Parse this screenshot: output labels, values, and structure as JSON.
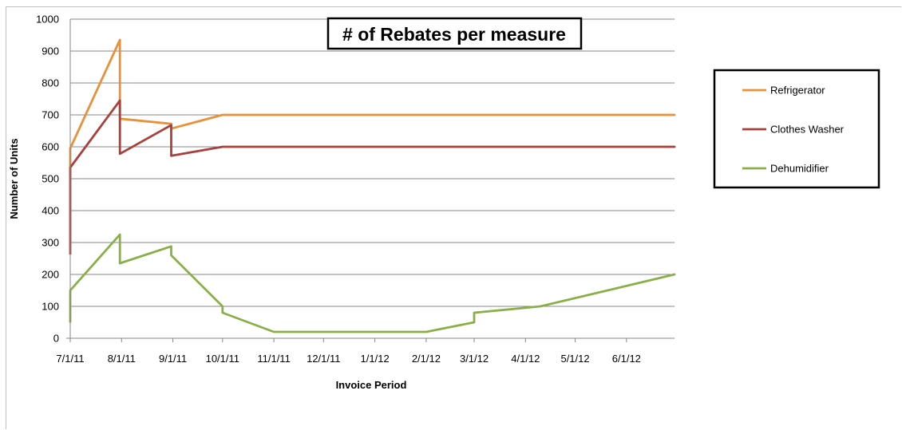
{
  "chart_data": {
    "type": "line",
    "title": "# of Rebates per measure",
    "xlabel": "Invoice Period",
    "ylabel": "Number of Units",
    "ylim": [
      0,
      1000
    ],
    "yticks": [
      0,
      100,
      200,
      300,
      400,
      500,
      600,
      700,
      800,
      900,
      1000
    ],
    "xlim": [
      "2011-07-01",
      "2012-06-30"
    ],
    "xticks": [
      {
        "date": "2011-07-01",
        "label": "7/1/11"
      },
      {
        "date": "2011-08-01",
        "label": "8/1/11"
      },
      {
        "date": "2011-09-01",
        "label": "9/1/11"
      },
      {
        "date": "2011-10-01",
        "label": "10/1/11"
      },
      {
        "date": "2011-11-01",
        "label": "11/1/11"
      },
      {
        "date": "2011-12-01",
        "label": "12/1/11"
      },
      {
        "date": "2012-01-01",
        "label": "1/1/12"
      },
      {
        "date": "2012-02-01",
        "label": "2/1/12"
      },
      {
        "date": "2012-03-01",
        "label": "3/1/12"
      },
      {
        "date": "2012-04-01",
        "label": "4/1/12"
      },
      {
        "date": "2012-05-01",
        "label": "5/1/12"
      },
      {
        "date": "2012-06-01",
        "label": "6/1/12"
      }
    ],
    "grid": "horizontal",
    "legend": "right",
    "series": [
      {
        "name": "Refrigerator",
        "color": "#e8913a",
        "points": [
          [
            "2011-07-01",
            510
          ],
          [
            "2011-07-01",
            595
          ],
          [
            "2011-07-31",
            935
          ],
          [
            "2011-07-31",
            688
          ],
          [
            "2011-08-31",
            672
          ],
          [
            "2011-08-31",
            657
          ],
          [
            "2011-10-01",
            700
          ],
          [
            "2012-06-30",
            700
          ]
        ]
      },
      {
        "name": "Clothes Washer",
        "color": "#a9403b",
        "points": [
          [
            "2011-07-01",
            265
          ],
          [
            "2011-07-01",
            535
          ],
          [
            "2011-07-31",
            745
          ],
          [
            "2011-07-31",
            578
          ],
          [
            "2011-08-31",
            668
          ],
          [
            "2011-08-31",
            572
          ],
          [
            "2011-10-01",
            600
          ],
          [
            "2012-06-30",
            600
          ]
        ]
      },
      {
        "name": "Dehumidifier",
        "color": "#8aaf48",
        "points": [
          [
            "2011-07-01",
            52
          ],
          [
            "2011-07-01",
            150
          ],
          [
            "2011-07-31",
            325
          ],
          [
            "2011-07-31",
            235
          ],
          [
            "2011-08-31",
            288
          ],
          [
            "2011-08-31",
            260
          ],
          [
            "2011-10-01",
            100
          ],
          [
            "2011-10-01",
            80
          ],
          [
            "2011-11-01",
            20
          ],
          [
            "2012-02-01",
            20
          ],
          [
            "2012-03-01",
            50
          ],
          [
            "2012-03-01",
            80
          ],
          [
            "2012-04-10",
            100
          ],
          [
            "2012-06-30",
            200
          ]
        ]
      }
    ]
  }
}
